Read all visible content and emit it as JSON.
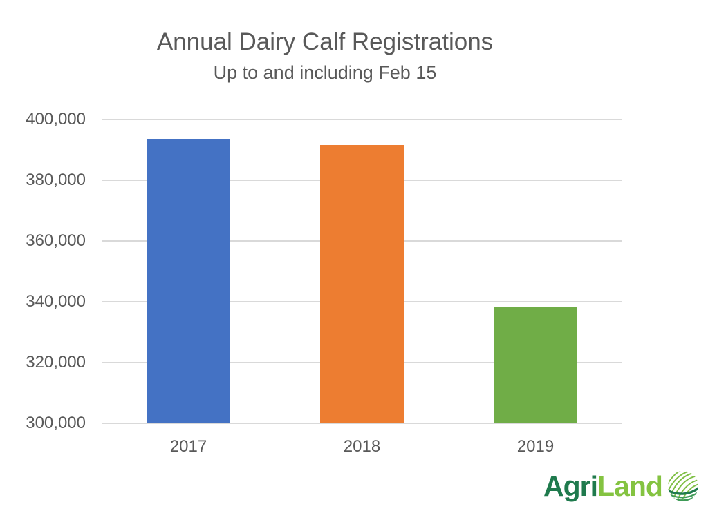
{
  "chart_data": {
    "type": "bar",
    "title": "Annual Dairy Calf Registrations",
    "subtitle": "Up to and including Feb 15",
    "categories": [
      "2017",
      "2018",
      "2019"
    ],
    "values": [
      393600,
      391600,
      338300
    ],
    "bar_colors": [
      "#4472C4",
      "#ED7D31",
      "#70AD47"
    ],
    "ylim": [
      300000,
      400000
    ],
    "ytick_step": 20000,
    "ytick_labels_bottom_to_top": [
      "300,000",
      "320,000",
      "340,000",
      "360,000",
      "380,000",
      "400,000"
    ],
    "xlabel": "",
    "ylabel": "",
    "grid": true,
    "gridline_color": "#d9d9d9",
    "text_color": "#595959",
    "legend": "none"
  },
  "logo": {
    "text_primary": "Agri",
    "text_secondary": "Land",
    "color_primary": "#1f7a4d",
    "color_secondary": "#84c341",
    "icon": "field-sphere-icon"
  }
}
